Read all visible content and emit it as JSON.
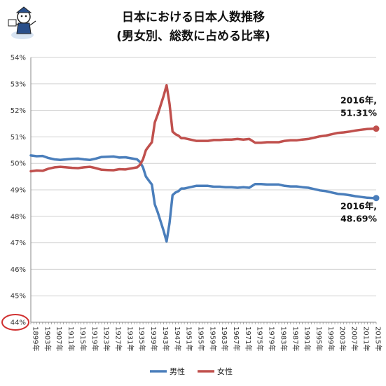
{
  "chart_data": {
    "type": "line",
    "title": "日本における日本人数推移",
    "subtitle": "(男女別、総数に占める比率)",
    "ylim": [
      44,
      54
    ],
    "y_ticks": [
      "54%",
      "53%",
      "52%",
      "51%",
      "50%",
      "49%",
      "48%",
      "47%",
      "46%",
      "45%",
      "44%"
    ],
    "x_tick_labels": [
      "1899年",
      "1903年",
      "1907年",
      "1911年",
      "1915年",
      "1919年",
      "1923年",
      "1927年",
      "1931年",
      "1935年",
      "1939年",
      "1943年",
      "1947年",
      "1951年",
      "1955年",
      "1959年",
      "1963年",
      "1967年",
      "1971年",
      "1975年",
      "1979年",
      "1983年",
      "1987年",
      "1991年",
      "1995年",
      "1999年",
      "2003年",
      "2007年",
      "2011年",
      "2015年"
    ],
    "x_start": 1899,
    "x_end": 2016,
    "grid": true,
    "legend_position": "bottom",
    "highlight_tick": "44%",
    "series": [
      {
        "name": "男性",
        "color": "#4a7ebb",
        "x": [
          1899,
          1901,
          1903,
          1905,
          1907,
          1909,
          1911,
          1913,
          1915,
          1917,
          1919,
          1921,
          1923,
          1925,
          1927,
          1929,
          1931,
          1933,
          1935,
          1936,
          1937,
          1938,
          1939,
          1940,
          1941,
          1942,
          1943,
          1944,
          1945,
          1946,
          1947,
          1948,
          1949,
          1950,
          1951,
          1953,
          1955,
          1957,
          1959,
          1961,
          1963,
          1965,
          1967,
          1969,
          1971,
          1973,
          1975,
          1977,
          1979,
          1981,
          1983,
          1985,
          1987,
          1989,
          1991,
          1993,
          1995,
          1997,
          1999,
          2001,
          2003,
          2005,
          2007,
          2009,
          2011,
          2013,
          2015,
          2016
        ],
        "values": [
          50.3,
          50.27,
          50.28,
          50.2,
          50.15,
          50.13,
          50.15,
          50.17,
          50.18,
          50.15,
          50.13,
          50.18,
          50.24,
          50.25,
          50.26,
          50.22,
          50.23,
          50.19,
          50.15,
          50.05,
          49.85,
          49.5,
          49.35,
          49.2,
          48.45,
          48.15,
          47.8,
          47.45,
          47.05,
          47.75,
          48.8,
          48.9,
          48.95,
          49.05,
          49.05,
          49.1,
          49.15,
          49.15,
          49.15,
          49.12,
          49.12,
          49.1,
          49.1,
          49.08,
          49.1,
          49.08,
          49.22,
          49.22,
          49.2,
          49.2,
          49.2,
          49.15,
          49.13,
          49.13,
          49.1,
          49.08,
          49.03,
          48.98,
          48.95,
          48.9,
          48.85,
          48.83,
          48.8,
          48.76,
          48.73,
          48.7,
          48.69,
          48.69
        ]
      },
      {
        "name": "女性",
        "color": "#c0504d",
        "x": [
          1899,
          1901,
          1903,
          1905,
          1907,
          1909,
          1911,
          1913,
          1915,
          1917,
          1919,
          1921,
          1923,
          1925,
          1927,
          1929,
          1931,
          1933,
          1935,
          1936,
          1937,
          1938,
          1939,
          1940,
          1941,
          1942,
          1943,
          1944,
          1945,
          1946,
          1947,
          1948,
          1949,
          1950,
          1951,
          1953,
          1955,
          1957,
          1959,
          1961,
          1963,
          1965,
          1967,
          1969,
          1971,
          1973,
          1975,
          1977,
          1979,
          1981,
          1983,
          1985,
          1987,
          1989,
          1991,
          1993,
          1995,
          1997,
          1999,
          2001,
          2003,
          2005,
          2007,
          2009,
          2011,
          2013,
          2015,
          2016
        ],
        "values": [
          49.7,
          49.73,
          49.72,
          49.8,
          49.85,
          49.87,
          49.85,
          49.83,
          49.82,
          49.85,
          49.87,
          49.82,
          49.76,
          49.75,
          49.74,
          49.78,
          49.77,
          49.81,
          49.85,
          49.95,
          50.15,
          50.5,
          50.65,
          50.8,
          51.55,
          51.85,
          52.2,
          52.55,
          52.95,
          52.25,
          51.2,
          51.1,
          51.05,
          50.95,
          50.95,
          50.9,
          50.85,
          50.85,
          50.85,
          50.88,
          50.88,
          50.9,
          50.9,
          50.92,
          50.9,
          50.92,
          50.78,
          50.78,
          50.8,
          50.8,
          50.8,
          50.85,
          50.87,
          50.87,
          50.9,
          50.92,
          50.97,
          51.02,
          51.05,
          51.1,
          51.15,
          51.17,
          51.2,
          51.24,
          51.27,
          51.3,
          51.31,
          51.31
        ]
      }
    ],
    "annotations": [
      {
        "series": "女性",
        "lines": [
          "2016年,",
          "51.31%"
        ]
      },
      {
        "series": "男性",
        "lines": [
          "2016年,",
          "48.69%"
        ]
      }
    ]
  }
}
